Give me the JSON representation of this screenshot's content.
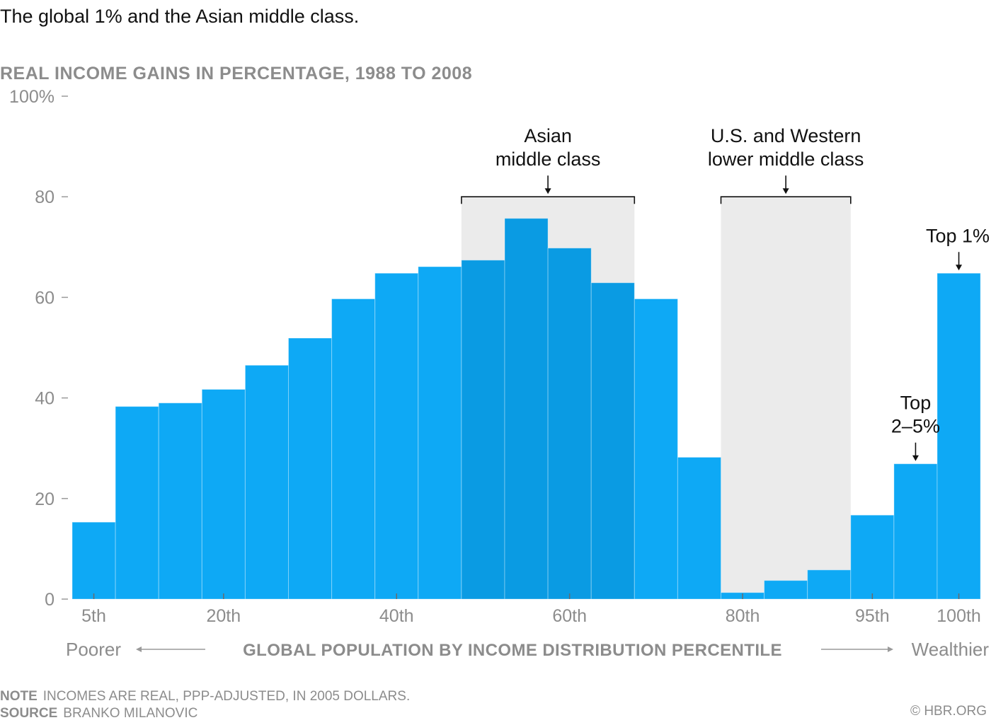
{
  "chart_data": {
    "type": "bar",
    "title": "The global 1% and the Asian middle class.",
    "subtitle": "REAL INCOME GAINS IN PERCENTAGE, 1988 TO 2008",
    "ylim": [
      0,
      100
    ],
    "y_ticks": [
      {
        "value": 0,
        "label": "0"
      },
      {
        "value": 20,
        "label": "20"
      },
      {
        "value": 40,
        "label": "40"
      },
      {
        "value": 60,
        "label": "60"
      },
      {
        "value": 80,
        "label": "80"
      },
      {
        "value": 100,
        "label": "100%"
      }
    ],
    "x_ticks": [
      {
        "index": 0,
        "label": "5th"
      },
      {
        "index": 3,
        "label": "20th"
      },
      {
        "index": 7,
        "label": "40th"
      },
      {
        "index": 11,
        "label": "60th"
      },
      {
        "index": 15,
        "label": "80th"
      },
      {
        "index": 18,
        "label": "95th"
      },
      {
        "index": 20,
        "label": "100th"
      }
    ],
    "values": [
      15.3,
      38.3,
      39.0,
      41.7,
      46.5,
      51.9,
      59.7,
      64.8,
      66.1,
      67.4,
      75.7,
      69.8,
      62.9,
      59.7,
      28.2,
      1.3,
      3.7,
      5.8,
      16.7,
      26.9,
      64.8
    ],
    "highlight_indices": [
      9,
      10,
      11,
      12
    ],
    "xlabel": "GLOBAL POPULATION BY INCOME DISTRIBUTION PERCENTILE",
    "xlabel_left": "Poorer",
    "xlabel_right": "Wealthier",
    "colors": {
      "bar": "#0ea9f5",
      "bar_highlight": "#0a9be3",
      "shade": "#ebebeb",
      "axis_text": "#8c8c8c"
    },
    "annotations": [
      {
        "lines": [
          "Asian",
          "middle class"
        ],
        "from_index": 9,
        "to_index": 12,
        "shaded": true
      },
      {
        "lines": [
          "U.S. and Western",
          "lower middle class"
        ],
        "from_index": 15,
        "to_index": 17,
        "shaded": true
      },
      {
        "lines": [
          "Top",
          "2–5%"
        ],
        "index": 19
      },
      {
        "lines": [
          "Top 1%"
        ],
        "index": 20
      }
    ]
  },
  "footer": {
    "note_label": "NOTE",
    "note_text": "INCOMES ARE REAL, PPP-ADJUSTED, IN 2005 DOLLARS.",
    "source_label": "SOURCE",
    "source_text": "BRANKO MILANOVIC",
    "credit": "© HBR.ORG"
  }
}
